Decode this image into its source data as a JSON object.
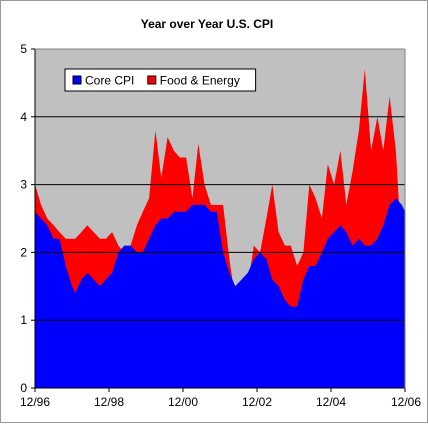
{
  "colors": {
    "plot_background": "#c0c0c0",
    "core": "#0000ff",
    "food_energy": "#ff0000",
    "gridline": "#000000",
    "axis": "#000000",
    "legend_background": "#ffffff"
  },
  "chart_data": {
    "type": "area",
    "title": "Year over Year U.S. CPI",
    "xlabel": "",
    "ylabel": "",
    "ylim": [
      0,
      5
    ],
    "yticks": [
      "0",
      "1",
      "2",
      "3",
      "4",
      "5"
    ],
    "xlim": [
      1996.917,
      2006.917
    ],
    "xticks": [
      {
        "x": 1996.917,
        "label": "12/96"
      },
      {
        "x": 1998.917,
        "label": "12/98"
      },
      {
        "x": 2000.917,
        "label": "12/00"
      },
      {
        "x": 2002.917,
        "label": "12/02"
      },
      {
        "x": 2004.917,
        "label": "12/04"
      },
      {
        "x": 2006.917,
        "label": "12/06"
      }
    ],
    "grid": "horizontal",
    "legend_placement": "top-left",
    "stacked": true,
    "series": [
      {
        "name": "Core CPI",
        "color": "#0000ff",
        "points": [
          [
            1996.92,
            2.6
          ],
          [
            1997.08,
            2.5
          ],
          [
            1997.25,
            2.4
          ],
          [
            1997.42,
            2.2
          ],
          [
            1997.58,
            2.2
          ],
          [
            1997.75,
            1.8
          ],
          [
            1997.92,
            1.5
          ],
          [
            1998.0,
            1.4
          ],
          [
            1998.17,
            1.6
          ],
          [
            1998.33,
            1.7
          ],
          [
            1998.5,
            1.6
          ],
          [
            1998.67,
            1.5
          ],
          [
            1998.83,
            1.6
          ],
          [
            1999.0,
            1.7
          ],
          [
            1999.17,
            2.0
          ],
          [
            1999.33,
            2.1
          ],
          [
            1999.5,
            2.1
          ],
          [
            1999.67,
            2.0
          ],
          [
            1999.83,
            2.0
          ],
          [
            2000.0,
            2.2
          ],
          [
            2000.17,
            2.4
          ],
          [
            2000.33,
            2.5
          ],
          [
            2000.5,
            2.5
          ],
          [
            2000.67,
            2.6
          ],
          [
            2000.83,
            2.6
          ],
          [
            2001.0,
            2.6
          ],
          [
            2001.17,
            2.7
          ],
          [
            2001.33,
            2.7
          ],
          [
            2001.5,
            2.7
          ],
          [
            2001.67,
            2.6
          ],
          [
            2001.83,
            2.6
          ],
          [
            2002.0,
            2.0
          ],
          [
            2002.17,
            1.7
          ],
          [
            2002.33,
            1.5
          ],
          [
            2002.5,
            1.6
          ],
          [
            2002.67,
            1.7
          ],
          [
            2002.83,
            1.9
          ],
          [
            2003.0,
            2.0
          ],
          [
            2003.17,
            1.9
          ],
          [
            2003.33,
            1.6
          ],
          [
            2003.5,
            1.5
          ],
          [
            2003.67,
            1.3
          ],
          [
            2003.83,
            1.2
          ],
          [
            2004.0,
            1.2
          ],
          [
            2004.17,
            1.6
          ],
          [
            2004.33,
            1.8
          ],
          [
            2004.5,
            1.8
          ],
          [
            2004.67,
            2.0
          ],
          [
            2004.83,
            2.2
          ],
          [
            2005.0,
            2.3
          ],
          [
            2005.17,
            2.4
          ],
          [
            2005.33,
            2.3
          ],
          [
            2005.5,
            2.1
          ],
          [
            2005.67,
            2.2
          ],
          [
            2005.83,
            2.1
          ],
          [
            2006.0,
            2.1
          ],
          [
            2006.17,
            2.2
          ],
          [
            2006.33,
            2.4
          ],
          [
            2006.5,
            2.7
          ],
          [
            2006.67,
            2.8
          ],
          [
            2006.83,
            2.7
          ],
          [
            2006.92,
            2.6
          ]
        ]
      },
      {
        "name": "Food & Energy",
        "color": "#ff0000",
        "points": [
          [
            1996.92,
            3.0
          ],
          [
            1997.08,
            2.7
          ],
          [
            1997.25,
            2.5
          ],
          [
            1997.42,
            2.4
          ],
          [
            1997.58,
            2.3
          ],
          [
            1997.75,
            2.2
          ],
          [
            1997.92,
            2.2
          ],
          [
            1998.0,
            2.2
          ],
          [
            1998.17,
            2.3
          ],
          [
            1998.33,
            2.4
          ],
          [
            1998.5,
            2.3
          ],
          [
            1998.67,
            2.2
          ],
          [
            1998.83,
            2.2
          ],
          [
            1999.0,
            2.3
          ],
          [
            1999.17,
            2.1
          ],
          [
            1999.33,
            2.0
          ],
          [
            1999.5,
            2.1
          ],
          [
            1999.67,
            2.4
          ],
          [
            1999.83,
            2.6
          ],
          [
            2000.0,
            2.8
          ],
          [
            2000.17,
            3.8
          ],
          [
            2000.33,
            3.1
          ],
          [
            2000.5,
            3.7
          ],
          [
            2000.67,
            3.5
          ],
          [
            2000.83,
            3.4
          ],
          [
            2001.0,
            3.4
          ],
          [
            2001.17,
            2.8
          ],
          [
            2001.33,
            3.6
          ],
          [
            2001.5,
            3.0
          ],
          [
            2001.67,
            2.7
          ],
          [
            2001.83,
            2.7
          ],
          [
            2002.0,
            2.7
          ],
          [
            2002.17,
            1.9
          ],
          [
            2002.33,
            1.3
          ],
          [
            2002.5,
            1.1
          ],
          [
            2002.67,
            1.5
          ],
          [
            2002.83,
            2.1
          ],
          [
            2003.0,
            2.0
          ],
          [
            2003.17,
            2.5
          ],
          [
            2003.33,
            3.0
          ],
          [
            2003.5,
            2.3
          ],
          [
            2003.67,
            2.1
          ],
          [
            2003.83,
            2.1
          ],
          [
            2004.0,
            1.8
          ],
          [
            2004.17,
            2.0
          ],
          [
            2004.33,
            3.0
          ],
          [
            2004.5,
            2.8
          ],
          [
            2004.67,
            2.5
          ],
          [
            2004.83,
            3.3
          ],
          [
            2005.0,
            3.0
          ],
          [
            2005.17,
            3.5
          ],
          [
            2005.33,
            2.7
          ],
          [
            2005.5,
            3.2
          ],
          [
            2005.67,
            3.8
          ],
          [
            2005.83,
            4.7
          ],
          [
            2006.0,
            3.5
          ],
          [
            2006.17,
            4.0
          ],
          [
            2006.33,
            3.5
          ],
          [
            2006.5,
            4.3
          ],
          [
            2006.67,
            3.5
          ],
          [
            2006.83,
            2.0
          ],
          [
            2006.92,
            2.7
          ]
        ]
      }
    ]
  }
}
